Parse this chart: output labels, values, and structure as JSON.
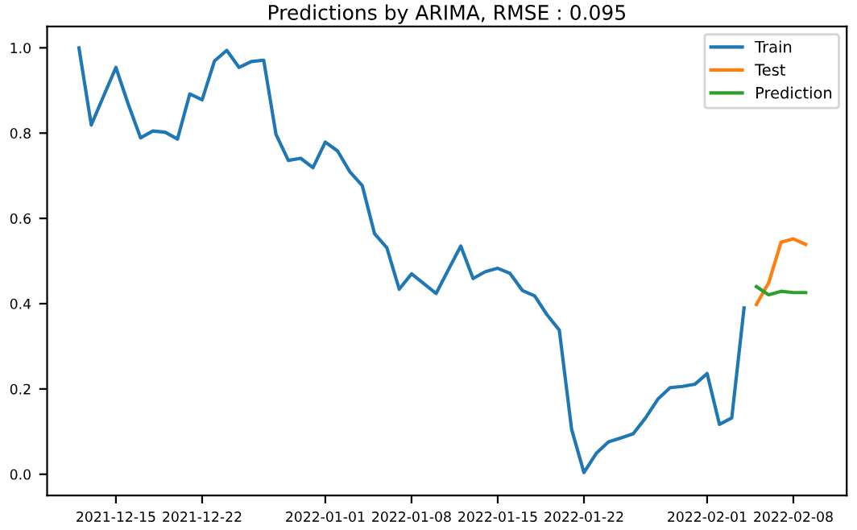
{
  "chart_data": {
    "type": "line",
    "title": "Predictions by ARIMA, RMSE : 0.095",
    "xlim": [
      "2021-12-09T10:00",
      "2022-02-12T08:00"
    ],
    "xticks": [
      "2021-12-15",
      "2021-12-22",
      "2022-01-01",
      "2022-01-08",
      "2022-01-15",
      "2022-01-22",
      "2022-02-01",
      "2022-02-08"
    ],
    "ylim": [
      -0.05,
      1.05
    ],
    "yticks": [
      {
        "value": 0,
        "label": "0.0"
      },
      0.2,
      0.4,
      0.6,
      0.8,
      {
        "value": 1,
        "label": "1.0"
      }
    ],
    "grid": false,
    "legend": "top right",
    "marker": "none",
    "line_style": "solid",
    "series": [
      {
        "name": "Train",
        "color": "#1f77b4",
        "x": [
          "2021-12-12",
          "2021-12-13",
          "2021-12-14",
          "2021-12-15",
          "2021-12-16",
          "2021-12-17",
          "2021-12-18",
          "2021-12-19",
          "2021-12-20",
          "2021-12-21",
          "2021-12-22",
          "2021-12-23",
          "2021-12-24",
          "2021-12-25",
          "2021-12-26",
          "2021-12-27",
          "2021-12-28",
          "2021-12-29",
          "2021-12-30",
          "2021-12-31",
          "2022-01-01",
          "2022-01-02",
          "2022-01-03",
          "2022-01-04",
          "2022-01-05",
          "2022-01-06",
          "2022-01-07",
          "2022-01-08",
          "2022-01-09",
          "2022-01-10",
          "2022-01-11",
          "2022-01-12",
          "2022-01-13",
          "2022-01-14",
          "2022-01-15",
          "2022-01-16",
          "2022-01-17",
          "2022-01-18",
          "2022-01-19",
          "2022-01-20",
          "2022-01-21",
          "2022-01-22",
          "2022-01-23",
          "2022-01-24",
          "2022-01-25",
          "2022-01-26",
          "2022-01-27",
          "2022-01-28",
          "2022-01-29",
          "2022-01-30",
          "2022-01-31",
          "2022-02-01",
          "2022-02-02",
          "2022-02-03",
          "2022-02-04"
        ],
        "values": [
          1.0,
          0.819,
          0.887,
          0.954,
          0.868,
          0.789,
          0.805,
          0.802,
          0.786,
          0.892,
          0.878,
          0.969,
          0.994,
          0.954,
          0.968,
          0.971,
          0.797,
          0.736,
          0.741,
          0.719,
          0.779,
          0.758,
          0.709,
          0.677,
          0.564,
          0.531,
          0.434,
          0.47,
          0.447,
          0.424,
          0.48,
          0.535,
          0.459,
          0.475,
          0.483,
          0.471,
          0.431,
          0.418,
          0.374,
          0.338,
          0.105,
          0.004,
          0.049,
          0.076,
          0.085,
          0.095,
          0.132,
          0.176,
          0.203,
          0.206,
          0.211,
          0.236,
          0.117,
          0.132,
          0.39
        ]
      },
      {
        "name": "Test",
        "color": "#ff7f0e",
        "x": [
          "2022-02-05",
          "2022-02-06",
          "2022-02-07",
          "2022-02-08",
          "2022-02-09"
        ],
        "values": [
          0.398,
          0.449,
          0.544,
          0.552,
          0.539
        ]
      },
      {
        "name": "Prediction",
        "color": "#2ca02c",
        "x": [
          "2022-02-05",
          "2022-02-06",
          "2022-02-07",
          "2022-02-08",
          "2022-02-09"
        ],
        "values": [
          0.44,
          0.421,
          0.429,
          0.426,
          0.426
        ]
      }
    ]
  }
}
